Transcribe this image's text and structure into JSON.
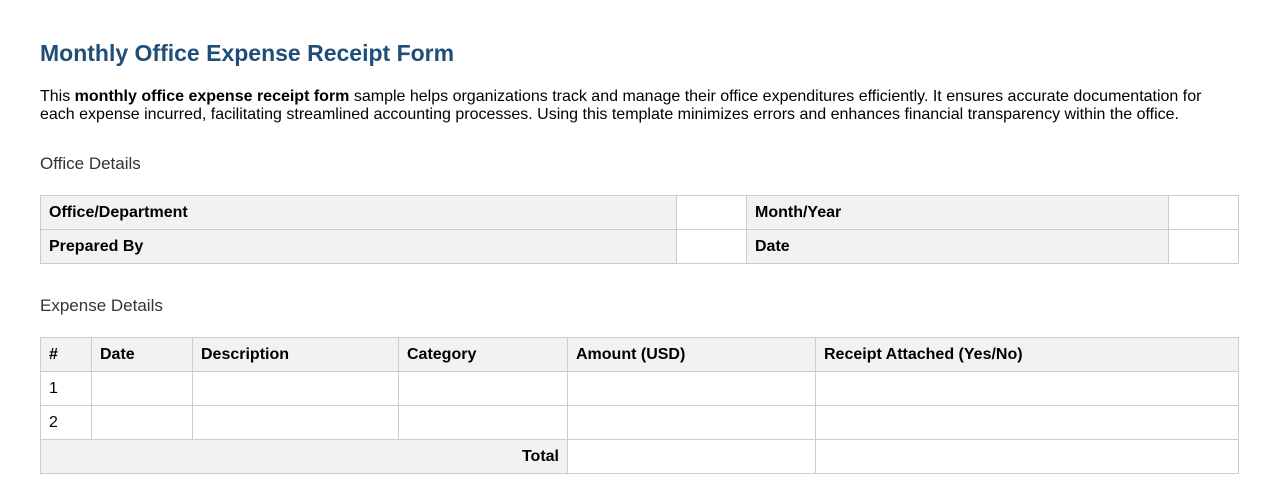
{
  "title": "Monthly Office Expense Receipt Form",
  "intro": {
    "before": "This ",
    "bold": "monthly office expense receipt form",
    "after": " sample helps organizations track and manage their office expenditures efficiently. It ensures accurate documentation for each expense incurred, facilitating streamlined accounting processes. Using this template minimizes errors and enhances financial transparency within the office."
  },
  "office_section": {
    "heading": "Office Details",
    "labels": [
      "Office/Department",
      "Month/Year",
      "Prepared By",
      "Date"
    ],
    "values": [
      "",
      "",
      "",
      ""
    ]
  },
  "expense_section": {
    "heading": "Expense Details",
    "columns": [
      "#",
      "Date",
      "Description",
      "Category",
      "Amount (USD)",
      "Receipt Attached (Yes/No)"
    ],
    "rows": [
      [
        "1",
        "",
        "",
        "",
        "",
        ""
      ],
      [
        "2",
        "",
        "",
        "",
        "",
        ""
      ]
    ],
    "total_label": "Total",
    "total_amount": "",
    "total_receipt": ""
  },
  "colors": {
    "title": "#1f4e79",
    "header_bg": "#f2f2f2",
    "border": "#cccccc"
  }
}
